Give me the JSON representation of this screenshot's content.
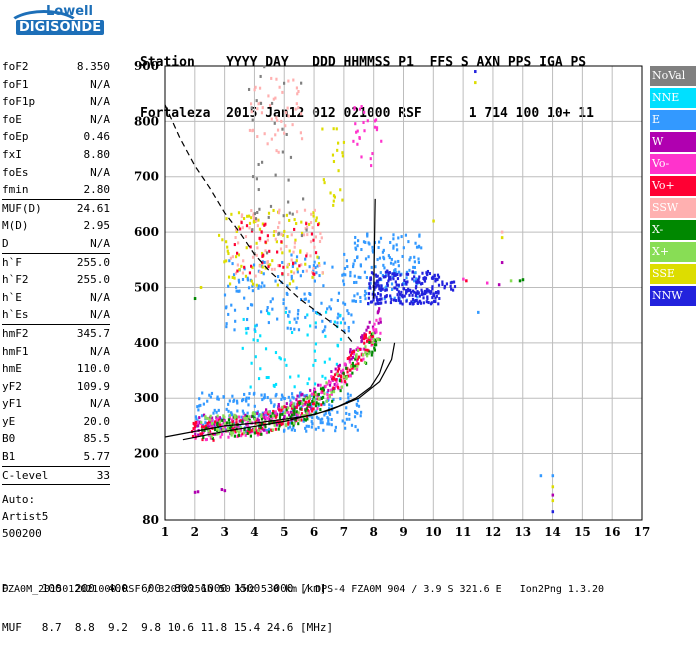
{
  "logo": {
    "line1": "Lowell",
    "line2": "DIGISONDE"
  },
  "header": {
    "labels": "Station    YYYY DAY   DDD HHMMSS P1  FFS S AXN PPS IGA PS",
    "values": "Fortaleza  2015 Jan12 012 021000 RSF      1 714 100 10+ 11"
  },
  "params": [
    {
      "k": "foF2",
      "v": "8.350"
    },
    {
      "k": "foF1",
      "v": "N/A"
    },
    {
      "k": "foF1p",
      "v": "N/A"
    },
    {
      "k": "foE",
      "v": "N/A"
    },
    {
      "k": "foEp",
      "v": "0.46"
    },
    {
      "k": "fxI",
      "v": "8.80"
    },
    {
      "k": "foEs",
      "v": "N/A"
    },
    {
      "k": "fmin",
      "v": "2.80",
      "sep": true
    },
    {
      "k": "MUF(D)",
      "v": "24.61"
    },
    {
      "k": "M(D)",
      "v": "2.95"
    },
    {
      "k": "D",
      "v": "N/A",
      "sep": true
    },
    {
      "k": "h`F",
      "v": "255.0"
    },
    {
      "k": "h`F2",
      "v": "255.0"
    },
    {
      "k": "h`E",
      "v": "N/A"
    },
    {
      "k": "h`Es",
      "v": "N/A",
      "sep": true
    },
    {
      "k": "hmF2",
      "v": "345.7"
    },
    {
      "k": "hmF1",
      "v": "N/A"
    },
    {
      "k": "hmE",
      "v": "110.0"
    },
    {
      "k": "yF2",
      "v": "109.9"
    },
    {
      "k": "yF1",
      "v": "N/A"
    },
    {
      "k": "yE",
      "v": "20.0"
    },
    {
      "k": "B0",
      "v": "85.5"
    },
    {
      "k": "B1",
      "v": "5.77",
      "sep": true
    },
    {
      "k": "C-level",
      "v": "33",
      "sep": true
    }
  ],
  "auto": {
    "line1": "Auto:",
    "line2": "Artist5",
    "line3": "500200"
  },
  "legend": [
    {
      "label": "NoVal",
      "color": "#808080"
    },
    {
      "label": "NNE",
      "color": "#00e0ff"
    },
    {
      "label": "E",
      "color": "#3399ff"
    },
    {
      "label": "W",
      "color": "#b000b0"
    },
    {
      "label": "Vo-",
      "color": "#ff33cc"
    },
    {
      "label": "Vo+",
      "color": "#ff0033"
    },
    {
      "label": "SSW",
      "color": "#ffb0b0"
    },
    {
      "label": "X-",
      "color": "#008800"
    },
    {
      "label": "X+",
      "color": "#88dd55"
    },
    {
      "label": "SSE",
      "color": "#dddd00"
    },
    {
      "label": "NNW",
      "color": "#2222dd"
    }
  ],
  "footer": {
    "d_row": "D     100  200  400  600  800 1000 1500 3000 [km]",
    "muf_row": "MUF   8.7  8.8  9.2  9.8 10.6 11.8 15.4 24.6 [MHz]",
    "info": "FZA0M_2015012021000.RSF / 320fx256h 50 kHz 5.0 km / DPS-4 FZA0M 904 / 3.9 S 321.6 E   Ion2Png 1.3.20"
  },
  "chart_data": {
    "type": "scatter",
    "xlim": [
      1,
      17
    ],
    "ylim": [
      80,
      900
    ],
    "x_ticks": [
      1,
      2,
      3,
      4,
      5,
      6,
      7,
      8,
      9,
      10,
      11,
      12,
      13,
      14,
      15,
      16,
      17
    ],
    "y_ticks": [
      80,
      200,
      300,
      400,
      500,
      600,
      700,
      800,
      900
    ],
    "grid": true,
    "legend_position": "right",
    "clusters": [
      {
        "series": "E",
        "color": "#3399ff",
        "x": [
          2.0,
          7.6
        ],
        "y": [
          240,
          310
        ],
        "n": 260
      },
      {
        "series": "E",
        "color": "#3399ff",
        "x": [
          3.0,
          7.5
        ],
        "y": [
          420,
          560
        ],
        "n": 160
      },
      {
        "series": "E",
        "color": "#3399ff",
        "x": [
          7.3,
          9.6
        ],
        "y": [
          470,
          600
        ],
        "n": 140
      },
      {
        "series": "NNW",
        "color": "#2222dd",
        "x": [
          7.8,
          10.2
        ],
        "y": [
          470,
          530
        ],
        "n": 230
      },
      {
        "series": "NNW",
        "color": "#2222dd",
        "x": [
          10.2,
          10.8
        ],
        "y": [
          495,
          510
        ],
        "n": 12
      },
      {
        "series": "NNE",
        "color": "#00e0ff",
        "x": [
          3.5,
          7.0
        ],
        "y": [
          320,
          460
        ],
        "n": 60
      },
      {
        "series": "W",
        "color": "#b000b0",
        "x": [
          2.0,
          8.3
        ],
        "y": [
          250,
          460
        ],
        "n": 170,
        "trace": true
      },
      {
        "series": "Vo-",
        "color": "#ff33cc",
        "x": [
          2.0,
          8.3
        ],
        "y": [
          245,
          440
        ],
        "n": 160,
        "trace": true
      },
      {
        "series": "Vo+",
        "color": "#ff0033",
        "x": [
          1.8,
          8.0
        ],
        "y": [
          240,
          420
        ],
        "n": 170,
        "trace": true
      },
      {
        "series": "X-",
        "color": "#008800",
        "x": [
          2.2,
          8.2
        ],
        "y": [
          245,
          420
        ],
        "n": 130,
        "trace": true
      },
      {
        "series": "X+",
        "color": "#88dd55",
        "x": [
          2.2,
          8.3
        ],
        "y": [
          250,
          430
        ],
        "n": 110,
        "trace": true
      },
      {
        "series": "SSE",
        "color": "#dddd00",
        "x": [
          2.8,
          6.3
        ],
        "y": [
          500,
          640
        ],
        "n": 90
      },
      {
        "series": "SSE",
        "color": "#dddd00",
        "x": [
          6.2,
          7.0
        ],
        "y": [
          640,
          790
        ],
        "n": 20
      },
      {
        "series": "SSW",
        "color": "#ffb0b0",
        "x": [
          3.2,
          6.3
        ],
        "y": [
          520,
          640
        ],
        "n": 80
      },
      {
        "series": "SSW",
        "color": "#ffb0b0",
        "x": [
          3.8,
          5.6
        ],
        "y": [
          740,
          880
        ],
        "n": 50
      },
      {
        "series": "Vo+",
        "color": "#ff0033",
        "x": [
          3.3,
          6.2
        ],
        "y": [
          520,
          620
        ],
        "n": 40
      },
      {
        "series": "Vo-",
        "color": "#ff33cc",
        "x": [
          7.3,
          8.3
        ],
        "y": [
          720,
          840
        ],
        "n": 25
      },
      {
        "series": "NoVal",
        "color": "#808080",
        "x": [
          3.8,
          5.8
        ],
        "y": [
          560,
          900
        ],
        "n": 40
      }
    ],
    "points": [
      {
        "x": 11.4,
        "y": 890,
        "color": "#2222dd"
      },
      {
        "x": 11.4,
        "y": 870,
        "color": "#dddd00"
      },
      {
        "x": 10.0,
        "y": 620,
        "color": "#dddd00"
      },
      {
        "x": 12.3,
        "y": 600,
        "color": "#ffb0b0"
      },
      {
        "x": 12.3,
        "y": 590,
        "color": "#dddd00"
      },
      {
        "x": 12.3,
        "y": 545,
        "color": "#b000b0"
      },
      {
        "x": 11.0,
        "y": 515,
        "color": "#ff33cc"
      },
      {
        "x": 11.1,
        "y": 512,
        "color": "#ff0033"
      },
      {
        "x": 11.8,
        "y": 508,
        "color": "#ff33cc"
      },
      {
        "x": 12.2,
        "y": 505,
        "color": "#b000b0"
      },
      {
        "x": 12.6,
        "y": 512,
        "color": "#88dd55"
      },
      {
        "x": 12.9,
        "y": 512,
        "color": "#008800"
      },
      {
        "x": 13.0,
        "y": 514,
        "color": "#008800"
      },
      {
        "x": 11.5,
        "y": 455,
        "color": "#3399ff"
      },
      {
        "x": 13.6,
        "y": 160,
        "color": "#3399ff"
      },
      {
        "x": 14.0,
        "y": 160,
        "color": "#3399ff"
      },
      {
        "x": 14.0,
        "y": 140,
        "color": "#dddd00"
      },
      {
        "x": 14.0,
        "y": 125,
        "color": "#b000b0"
      },
      {
        "x": 14.0,
        "y": 115,
        "color": "#dddd00"
      },
      {
        "x": 14.0,
        "y": 95,
        "color": "#2222dd"
      },
      {
        "x": 2.0,
        "y": 130,
        "color": "#b000b0"
      },
      {
        "x": 2.1,
        "y": 131,
        "color": "#b000b0"
      },
      {
        "x": 2.9,
        "y": 135,
        "color": "#b000b0"
      },
      {
        "x": 3.0,
        "y": 133,
        "color": "#b000b0"
      },
      {
        "x": 2.0,
        "y": 480,
        "color": "#008800"
      },
      {
        "x": 2.2,
        "y": 500,
        "color": "#dddd00"
      }
    ],
    "lines": [
      {
        "name": "trace-dashed",
        "style": "dashed",
        "color": "#000000",
        "points": [
          [
            1.0,
            830
          ],
          [
            1.5,
            770
          ],
          [
            2.0,
            720
          ],
          [
            2.5,
            680
          ],
          [
            3.0,
            635
          ],
          [
            3.5,
            600
          ],
          [
            4.0,
            560
          ],
          [
            4.5,
            530
          ],
          [
            5.0,
            505
          ],
          [
            5.5,
            480
          ],
          [
            6.0,
            460
          ],
          [
            6.5,
            440
          ],
          [
            7.0,
            420
          ],
          [
            7.3,
            400
          ]
        ]
      },
      {
        "name": "trace-profile",
        "style": "solid",
        "color": "#000000",
        "points": [
          [
            1.0,
            230
          ],
          [
            2.0,
            240
          ],
          [
            3.0,
            250
          ],
          [
            4.0,
            255
          ],
          [
            5.0,
            262
          ],
          [
            6.0,
            270
          ],
          [
            6.8,
            285
          ],
          [
            7.4,
            300
          ],
          [
            7.9,
            320
          ],
          [
            8.2,
            345
          ],
          [
            8.35,
            370
          ]
        ]
      },
      {
        "name": "trace-curve",
        "style": "solid",
        "color": "#000000",
        "points": [
          [
            1.6,
            225
          ],
          [
            3.0,
            240
          ],
          [
            5.0,
            258
          ],
          [
            6.5,
            278
          ],
          [
            7.5,
            300
          ],
          [
            8.2,
            330
          ],
          [
            8.6,
            370
          ],
          [
            8.7,
            400
          ]
        ]
      },
      {
        "name": "trace-vertical",
        "style": "solid",
        "color": "#000000",
        "points": [
          [
            8.0,
            480
          ],
          [
            8.02,
            560
          ],
          [
            8.05,
            660
          ]
        ]
      }
    ]
  }
}
